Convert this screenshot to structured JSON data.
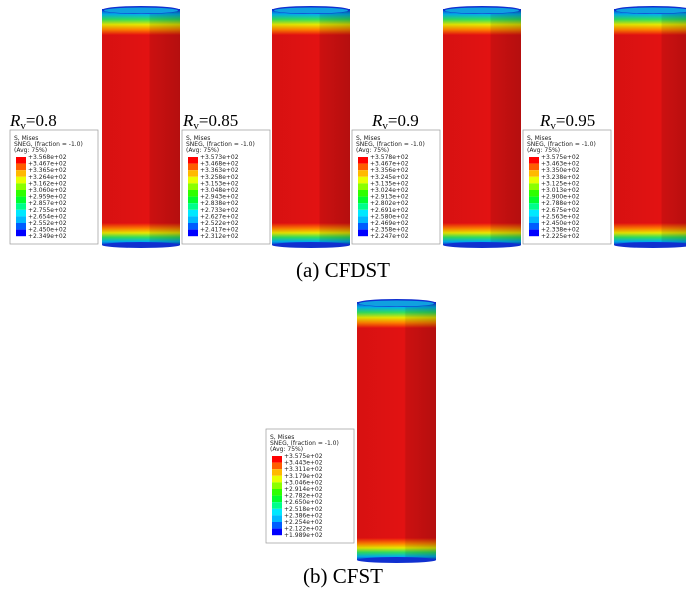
{
  "panels": [
    {
      "symbol": "R",
      "subscript": "v",
      "value": "=0.8",
      "legend": {
        "title": "S, Mises",
        "line2": "SNEG, (fraction = -1.0)",
        "line3": "(Avg: 75%)",
        "values": [
          "+3.568e+02",
          "+3.467e+02",
          "+3.365e+02",
          "+3.264e+02",
          "+3.162e+02",
          "+3.060e+02",
          "+2.959e+02",
          "+2.857e+02",
          "+2.755e+02",
          "+2.654e+02",
          "+2.552e+02",
          "+2.450e+02",
          "+2.349e+02"
        ]
      }
    },
    {
      "symbol": "R",
      "subscript": "v",
      "value": "=0.85",
      "legend": {
        "title": "S, Mises",
        "line2": "SNEG, (fraction = -1.0)",
        "line3": "(Avg: 75%)",
        "values": [
          "+3.573e+02",
          "+3.468e+02",
          "+3.363e+02",
          "+3.258e+02",
          "+3.153e+02",
          "+3.048e+02",
          "+2.943e+02",
          "+2.838e+02",
          "+2.733e+02",
          "+2.627e+02",
          "+2.522e+02",
          "+2.417e+02",
          "+2.312e+02"
        ]
      }
    },
    {
      "symbol": "R",
      "subscript": "v",
      "value": "=0.9",
      "legend": {
        "title": "S, Mises",
        "line2": "SNEG, (fraction = -1.0)",
        "line3": "(Avg: 75%)",
        "values": [
          "+3.578e+02",
          "+3.467e+02",
          "+3.356e+02",
          "+3.245e+02",
          "+3.135e+02",
          "+3.024e+02",
          "+2.913e+02",
          "+2.802e+02",
          "+2.691e+02",
          "+2.580e+02",
          "+2.469e+02",
          "+2.358e+02",
          "+2.247e+02"
        ]
      }
    },
    {
      "symbol": "R",
      "subscript": "v",
      "value": "=0.95",
      "legend": {
        "title": "S, Mises",
        "line2": "SNEG, (fraction = -1.0)",
        "line3": "(Avg: 75%)",
        "values": [
          "+3.575e+02",
          "+3.463e+02",
          "+3.350e+02",
          "+3.238e+02",
          "+3.125e+02",
          "+3.013e+02",
          "+2.900e+02",
          "+2.788e+02",
          "+2.675e+02",
          "+2.563e+02",
          "+2.450e+02",
          "+2.338e+02",
          "+2.225e+02"
        ]
      }
    }
  ],
  "caption_a": "(a) CFDST",
  "cfst": {
    "legend": {
      "title": "S, Mises",
      "line2": "SNEG, (fraction = -1.0)",
      "line3": "(Avg: 75%)",
      "values": [
        "+3.575e+02",
        "+3.443e+02",
        "+3.311e+02",
        "+3.179e+02",
        "+3.046e+02",
        "+2.914e+02",
        "+2.782e+02",
        "+2.650e+02",
        "+2.518e+02",
        "+2.386e+02",
        "+2.254e+02",
        "+2.122e+02",
        "+1.989e+02"
      ]
    }
  },
  "caption_b": "(b) CFST"
}
